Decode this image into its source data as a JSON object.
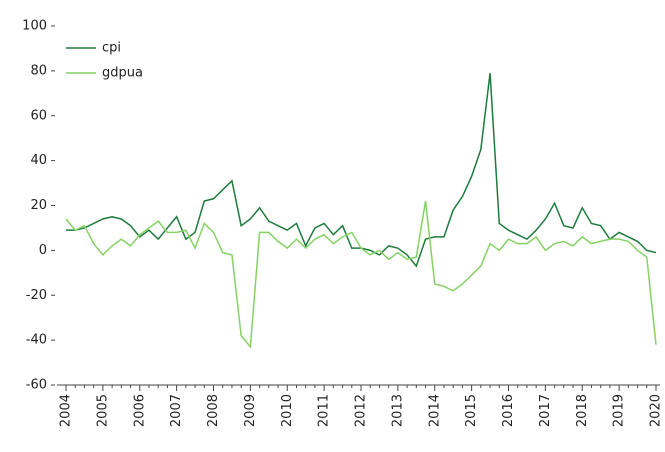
{
  "chart_data": {
    "type": "line",
    "categories": [
      "2004",
      null,
      null,
      null,
      "2005",
      null,
      null,
      null,
      "2006",
      null,
      null,
      null,
      "2007",
      null,
      null,
      null,
      "2008",
      null,
      null,
      null,
      "2009",
      null,
      null,
      null,
      "2010",
      null,
      null,
      null,
      "2011",
      null,
      null,
      null,
      "2012",
      null,
      null,
      null,
      "2013",
      null,
      null,
      null,
      "2014",
      null,
      null,
      null,
      "2015",
      null,
      null,
      null,
      "2016",
      null,
      null,
      null,
      "2017",
      null,
      null,
      null,
      "2018",
      null,
      null,
      null,
      "2019",
      null,
      null,
      null,
      "2020"
    ],
    "series": [
      {
        "name": "cpi",
        "color": "#1e7b3e",
        "values": [
          9,
          9,
          10,
          12,
          14,
          15,
          14,
          11,
          6,
          9,
          5,
          10,
          15,
          5,
          8,
          22,
          23,
          27,
          31,
          11,
          14,
          19,
          13,
          11,
          9,
          12,
          2,
          10,
          12,
          7,
          11,
          1,
          1,
          0,
          -2,
          2,
          1,
          -2,
          -7,
          5,
          6,
          6,
          18,
          24,
          33,
          45,
          79,
          12,
          9,
          7,
          5,
          9,
          14,
          21,
          11,
          10,
          19,
          12,
          11,
          5,
          8,
          6,
          4,
          0,
          -1
        ]
      },
      {
        "name": "gdpua",
        "color": "#86d264",
        "values": [
          14,
          9,
          11,
          3,
          -2,
          2,
          5,
          2,
          7,
          10,
          13,
          8,
          8,
          9,
          1,
          12,
          8,
          -1,
          -2,
          -38,
          -43,
          8,
          8,
          4,
          1,
          5,
          1,
          5,
          7,
          3,
          6,
          8,
          1,
          -2,
          0,
          -4,
          -1,
          -4,
          -3,
          22,
          -15,
          -16,
          -18,
          -15,
          -11,
          -7,
          3,
          0,
          5,
          3,
          3,
          6,
          0,
          3,
          4,
          2,
          6,
          3,
          4,
          5,
          5,
          4,
          0,
          -3,
          -42
        ]
      }
    ],
    "ylim": [
      -60,
      100
    ],
    "yticks": [
      -60,
      -40,
      -20,
      0,
      20,
      40,
      60,
      80,
      100
    ],
    "grid": false,
    "legend": "top-left"
  }
}
